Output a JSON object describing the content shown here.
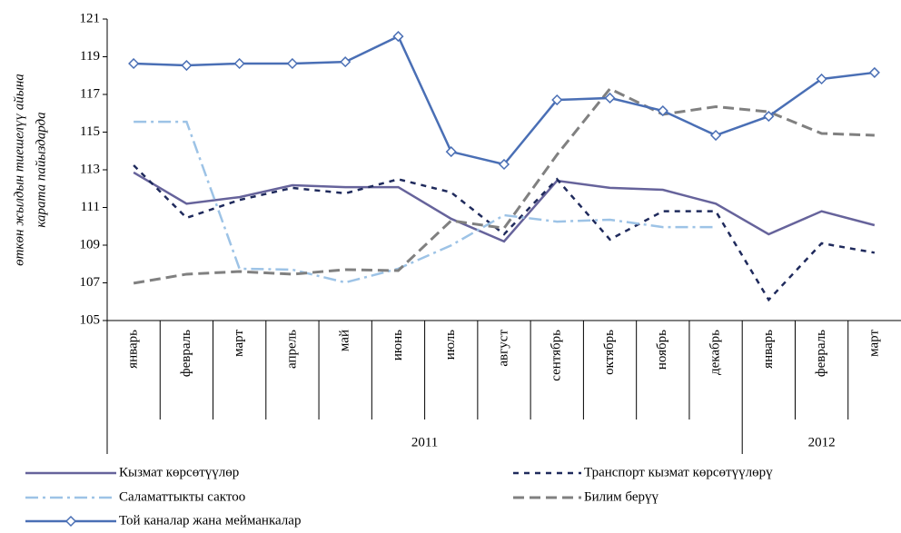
{
  "chart_data": {
    "type": "line",
    "ylabel": [
      "өткөн жылдын тиешелүү айына",
      "карата пайыздарда"
    ],
    "groups": [
      {
        "label": "2011",
        "categories": [
          "январь",
          "февраль",
          "март",
          "апрель",
          "май",
          "июнь",
          "июль",
          "август",
          "сентябрь",
          "октябрь",
          "ноябрь",
          "декабрь"
        ]
      },
      {
        "label": "2012",
        "categories": [
          "январь",
          "февраль",
          "март"
        ]
      }
    ],
    "ylim": [
      105,
      121
    ],
    "yticks": [
      105,
      107,
      109,
      111,
      113,
      115,
      117,
      119,
      121
    ],
    "series": [
      {
        "name": "Кызмат көрсөтүүлөр",
        "color": "#66639b",
        "dash": "solid",
        "values": [
          112.86,
          111.2,
          111.55,
          112.18,
          112.08,
          112.08,
          110.4,
          109.2,
          112.42,
          112.04,
          111.94,
          111.2,
          109.58,
          110.8,
          110.06
        ]
      },
      {
        "name": "Транспорт кызмат көрсөтүүлөрү",
        "color": "#1f2a5c",
        "dash": "dotted",
        "values": [
          113.24,
          110.45,
          111.4,
          112.04,
          111.75,
          112.5,
          111.8,
          109.58,
          112.5,
          109.3,
          110.8,
          110.8,
          106.1,
          109.1,
          108.6
        ]
      },
      {
        "name": "Саламаттыкты сактоо",
        "color": "#9dc3e6",
        "dash": "dashdot",
        "values": [
          115.55,
          115.55,
          107.75,
          107.7,
          107.02,
          107.75,
          108.99,
          110.59,
          110.25,
          110.35,
          109.96,
          109.96,
          null,
          null,
          null
        ]
      },
      {
        "name": "Билим берүү",
        "color": "#808080",
        "dash": "dashed",
        "values": [
          106.98,
          107.46,
          107.6,
          107.46,
          107.7,
          107.65,
          110.3,
          109.9,
          113.8,
          117.3,
          115.94,
          116.35,
          116.08,
          114.93,
          114.83
        ]
      },
      {
        "name": "Той каналар жана мейманкалар",
        "color": "#4a6fb5",
        "dash": "solid",
        "marker": "diamond",
        "values": [
          118.64,
          118.54,
          118.64,
          118.64,
          118.73,
          120.08,
          113.96,
          113.29,
          116.71,
          116.81,
          116.13,
          114.83,
          115.84,
          117.82,
          118.16
        ]
      }
    ]
  }
}
